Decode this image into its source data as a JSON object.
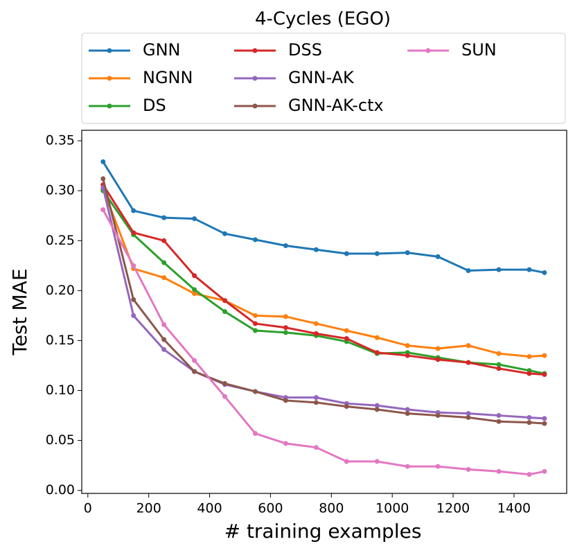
{
  "chart_data": {
    "type": "line",
    "title": "4-Cycles (EGO)",
    "xlabel": "# training examples",
    "ylabel": "Test MAE",
    "x": [
      50,
      150,
      250,
      350,
      450,
      550,
      650,
      750,
      850,
      950,
      1050,
      1150,
      1250,
      1350,
      1450,
      1500
    ],
    "series": [
      {
        "name": "GNN",
        "color": "#1f77b4",
        "values": [
          0.329,
          0.28,
          0.273,
          0.272,
          0.257,
          0.251,
          0.245,
          0.241,
          0.237,
          0.237,
          0.238,
          0.234,
          0.22,
          0.221,
          0.221,
          0.218
        ]
      },
      {
        "name": "NGNN",
        "color": "#ff7f0e",
        "values": [
          0.302,
          0.222,
          0.213,
          0.197,
          0.19,
          0.175,
          0.174,
          0.167,
          0.16,
          0.153,
          0.145,
          0.142,
          0.145,
          0.137,
          0.134,
          0.135
        ]
      },
      {
        "name": "DS",
        "color": "#2ca02c",
        "values": [
          0.3,
          0.256,
          0.228,
          0.201,
          0.179,
          0.16,
          0.158,
          0.155,
          0.149,
          0.137,
          0.138,
          0.133,
          0.128,
          0.126,
          0.12,
          0.117
        ]
      },
      {
        "name": "DSS",
        "color": "#d62728",
        "values": [
          0.306,
          0.258,
          0.25,
          0.215,
          0.19,
          0.167,
          0.163,
          0.157,
          0.152,
          0.138,
          0.135,
          0.131,
          0.128,
          0.122,
          0.117,
          0.116
        ]
      },
      {
        "name": "GNN-AK",
        "color": "#9467bd",
        "values": [
          0.303,
          0.175,
          0.141,
          0.119,
          0.106,
          0.099,
          0.093,
          0.093,
          0.087,
          0.085,
          0.081,
          0.078,
          0.077,
          0.075,
          0.073,
          0.072
        ]
      },
      {
        "name": "GNN-AK-ctx",
        "color": "#8c564b",
        "values": [
          0.312,
          0.191,
          0.151,
          0.119,
          0.107,
          0.099,
          0.09,
          0.088,
          0.084,
          0.081,
          0.077,
          0.075,
          0.073,
          0.069,
          0.068,
          0.067
        ]
      },
      {
        "name": "SUN",
        "color": "#e377c2",
        "values": [
          0.281,
          0.225,
          0.166,
          0.13,
          0.094,
          0.057,
          0.047,
          0.043,
          0.029,
          0.029,
          0.024,
          0.024,
          0.021,
          0.019,
          0.016,
          0.019
        ]
      }
    ],
    "xlim": [
      -20,
      1573
    ],
    "xticks": [
      0,
      200,
      400,
      600,
      800,
      1000,
      1200,
      1400
    ],
    "ylim": [
      -0.003,
      0.3605
    ],
    "yticks": [
      {
        "value": 0,
        "label": "0.00"
      },
      0.05,
      {
        "value": 0.1,
        "label": "0.10"
      },
      0.15,
      {
        "value": 0.2,
        "label": "0.20"
      },
      0.25,
      {
        "value": 0.3,
        "label": "0.30"
      },
      0.35
    ],
    "legend": "upper center",
    "grid": false
  }
}
